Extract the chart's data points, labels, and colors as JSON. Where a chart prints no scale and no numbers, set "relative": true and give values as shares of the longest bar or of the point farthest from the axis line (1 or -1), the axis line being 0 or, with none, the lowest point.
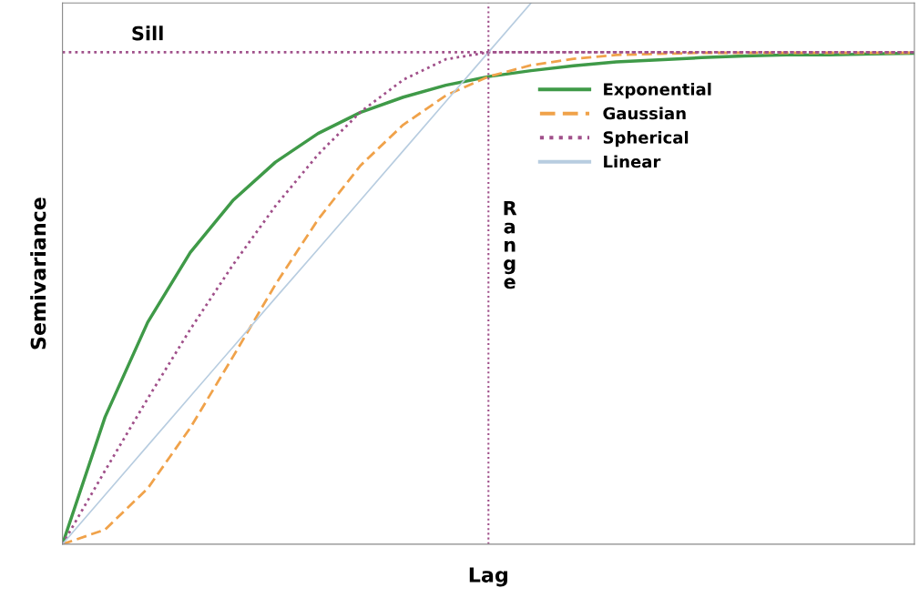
{
  "chart_data": {
    "type": "line",
    "relative": true,
    "xlabel": "Lag",
    "ylabel": "Semivariance",
    "categories": [
      null,
      null,
      null,
      null,
      null,
      null,
      null,
      null,
      null,
      null,
      null,
      null,
      null,
      null,
      null,
      null,
      null,
      null,
      null,
      null,
      null
    ],
    "series": [
      {
        "name": "Exponential",
        "color": "#3f9a48",
        "line_style": "solid",
        "values": [
          0,
          0.235,
          0.41,
          0.539,
          0.635,
          0.706,
          0.759,
          0.798,
          0.826,
          0.848,
          0.864,
          0.875,
          0.884,
          0.891,
          0.895,
          0.899,
          0.902,
          0.904,
          0.904,
          0.906,
          0.907
        ]
      },
      {
        "name": "Gaussian",
        "color": "#f0a24a",
        "line_style": "dashed",
        "values": [
          0,
          0.027,
          0.103,
          0.215,
          0.346,
          0.48,
          0.6,
          0.7,
          0.775,
          0.829,
          0.864,
          0.885,
          0.897,
          0.904,
          0.906,
          0.908,
          0.908,
          0.908,
          0.908,
          0.908,
          0.908
        ]
      },
      {
        "name": "Spherical",
        "color": "#a0508a",
        "line_style": "dotted",
        "values": [
          0,
          0.136,
          0.269,
          0.397,
          0.516,
          0.625,
          0.72,
          0.799,
          0.858,
          0.896,
          0.909,
          0.909,
          0.909,
          0.909,
          0.909,
          0.909,
          0.909,
          0.909,
          0.909,
          0.909,
          0.909
        ]
      },
      {
        "name": "Linear",
        "color": "#b8cde0",
        "line_style": "solid",
        "values": [
          0,
          0.091,
          0.182,
          0.273,
          0.364,
          0.455,
          0.545,
          0.636,
          0.727,
          0.818,
          0.909,
          1.0,
          null,
          null,
          null,
          null,
          null,
          null,
          null,
          null,
          null
        ]
      }
    ],
    "ref_lines": [
      {
        "axis": "y",
        "value": 0.909,
        "label": "Sill",
        "color": "#a0508a",
        "line_style": "dotted"
      }
    ],
    "annotations": [
      "Range"
    ],
    "legend": "top right",
    "marker": "none",
    "tick_labels": false
  }
}
